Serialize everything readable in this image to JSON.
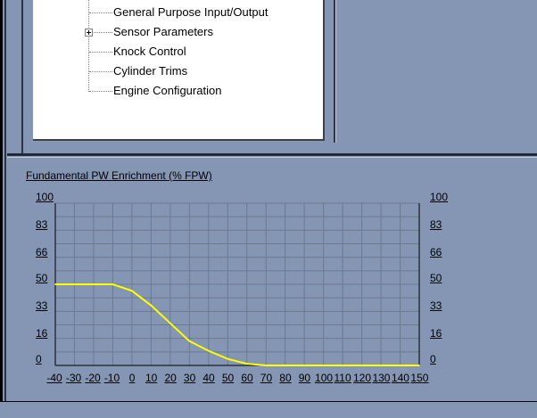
{
  "tree": {
    "items": [
      {
        "label": "General Purpose Input/Output"
      },
      {
        "label": "Sensor Parameters"
      },
      {
        "label": "Knock Control"
      },
      {
        "label": "Cylinder Trims"
      },
      {
        "label": "Engine Configuration"
      }
    ]
  },
  "chart_data": {
    "type": "line",
    "title": "Fundamental PW Enrichment (% FPW)",
    "xlabel": "",
    "ylabel": "",
    "x_ticks": [
      "-40",
      "-30",
      "-20",
      "-10",
      "0",
      "10",
      "20",
      "30",
      "40",
      "50",
      "60",
      "70",
      "80",
      "90",
      "100",
      "110",
      "120",
      "130",
      "140",
      "150"
    ],
    "y_ticks_left": [
      "100",
      "83",
      "66",
      "50",
      "33",
      "16",
      "0"
    ],
    "y_ticks_right": [
      "100",
      "83",
      "66",
      "50",
      "33",
      "16",
      "0"
    ],
    "xlim": [
      -40,
      150
    ],
    "ylim": [
      0,
      100
    ],
    "grid": true,
    "line_color": "#ffff00",
    "series": [
      {
        "name": "",
        "x": [
          -40,
          -30,
          -20,
          -10,
          0,
          10,
          20,
          30,
          40,
          50,
          60,
          70,
          80,
          90,
          100,
          110,
          120,
          130,
          140,
          150
        ],
        "y": [
          50,
          50,
          50,
          50,
          46,
          37,
          26,
          15,
          9,
          4,
          1,
          0,
          0,
          0,
          0,
          0,
          0,
          0,
          0,
          0
        ]
      }
    ]
  }
}
